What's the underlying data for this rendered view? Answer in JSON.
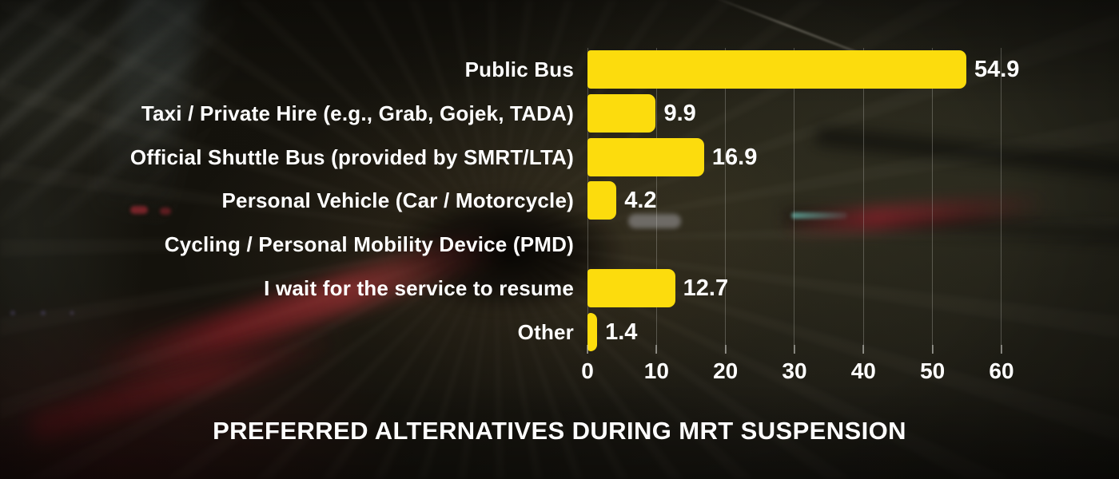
{
  "chart_data": {
    "type": "bar",
    "orientation": "horizontal",
    "title": "PREFERRED ALTERNATIVES DURING MRT SUSPENSION",
    "xlabel": "",
    "ylabel": "",
    "categories": [
      "Public Bus",
      "Taxi / Private Hire (e.g., Grab, Gojek, TADA)",
      "Official Shuttle Bus (provided by SMRT/LTA)",
      "Personal Vehicle (Car / Motorcycle)",
      "Cycling / Personal Mobility Device (PMD)",
      "I wait for the service to resume",
      "Other"
    ],
    "values": [
      54.9,
      9.9,
      16.9,
      4.2,
      0,
      12.7,
      1.4
    ],
    "value_labels": [
      "54.9",
      "9.9",
      "16.9",
      "4.2",
      "",
      "12.7",
      "1.4"
    ],
    "xlim": [
      0,
      60
    ],
    "x_ticks": [
      0,
      10,
      20,
      30,
      40,
      50,
      60
    ],
    "grid": true,
    "legend": "none",
    "bar_color": "#FCDC0D",
    "text_color": "#FFFFFF",
    "gridline_color": "rgba(205,205,200,0.30)"
  },
  "background": {
    "description": "dark motion-blurred MRT tunnel photo",
    "base_color": "#15130d",
    "accent_red": "#C0202E",
    "accent_green_gray": "#3A3F38"
  }
}
